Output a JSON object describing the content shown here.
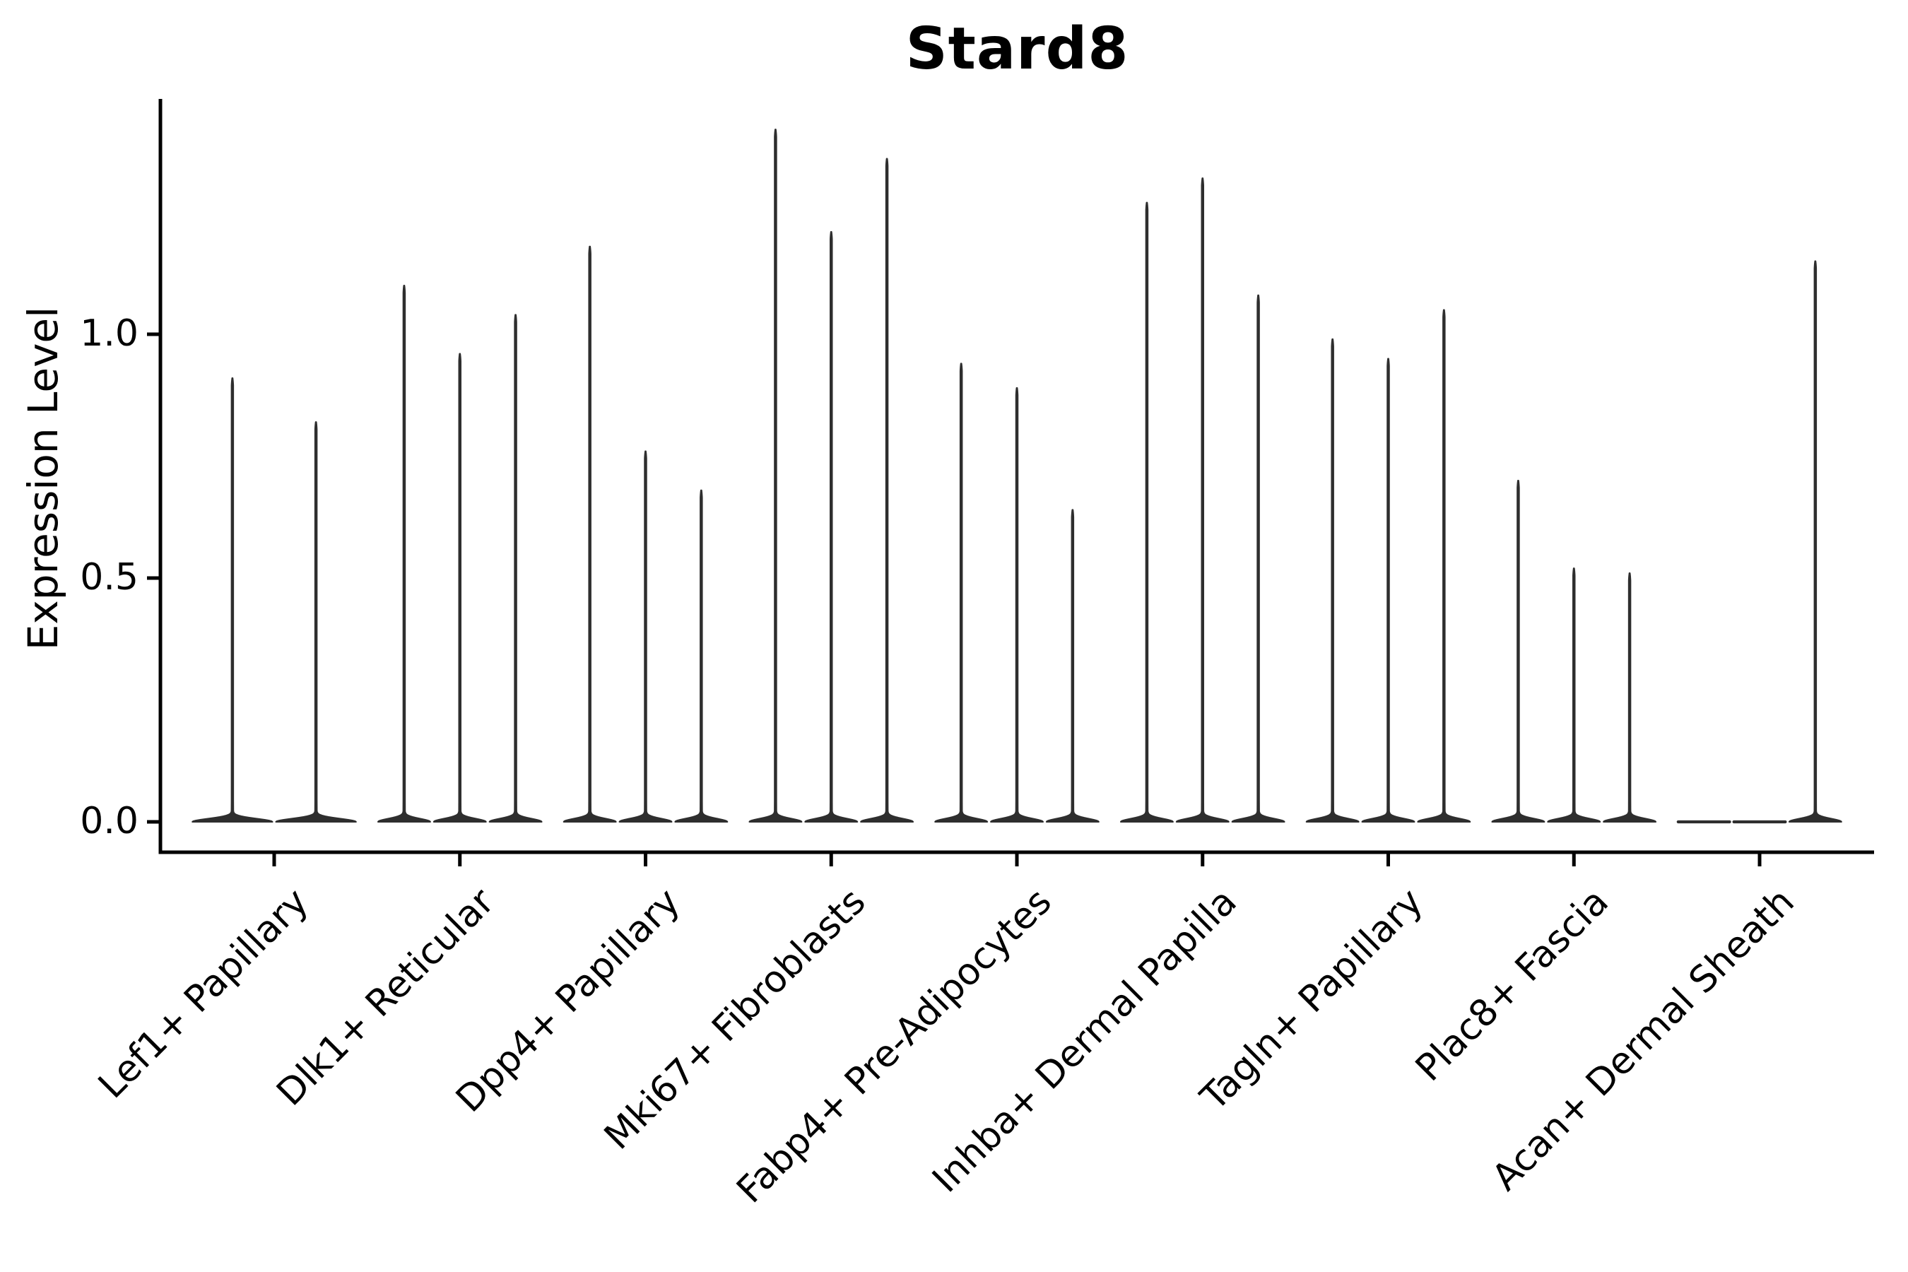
{
  "figure": {
    "title": "Stard8"
  },
  "chart_data": {
    "type": "violin",
    "title": "Stard8",
    "subtitle": "",
    "xlabel": "",
    "ylabel": "Expression Level",
    "grid": "off",
    "legend": "none",
    "background": "#ffffff",
    "colors": {
      "violin": "#2e2e2e",
      "axis": "#000000",
      "text": "#000000"
    },
    "ylim": [
      -0.06,
      1.49
    ],
    "y_ticks": [
      {
        "value": 0.0,
        "label": "0.0"
      },
      {
        "value": 0.5,
        "label": "0.5"
      },
      {
        "value": 1.0,
        "label": "1.0"
      }
    ],
    "categories": [
      "Lef1+ Papillary",
      "Dlk1+ Reticular",
      "Dpp4+ Papillary",
      "Mki67+ Fibroblasts",
      "Fabp4+ Pre-Adipocytes",
      "Inhba+ Dermal Papilla",
      "Tagln+ Papillary",
      "Plac8+ Fascia",
      "Acan+ Dermal Sheath"
    ],
    "violins_max_expression": [
      [
        0.91,
        0.82
      ],
      [
        1.1,
        0.96,
        1.04
      ],
      [
        1.18,
        0.76,
        0.68
      ],
      [
        1.42,
        1.21,
        1.36
      ],
      [
        0.94,
        0.89,
        0.64
      ],
      [
        1.27,
        1.32,
        1.08
      ],
      [
        0.99,
        0.95,
        1.05
      ],
      [
        0.7,
        0.52,
        0.51
      ],
      [
        0.0,
        0.0,
        1.15
      ]
    ],
    "violin_note": "thin spike violins: wide flat base at 0, narrow stem up to max expression; violins with value 0 are flat bars at baseline"
  }
}
